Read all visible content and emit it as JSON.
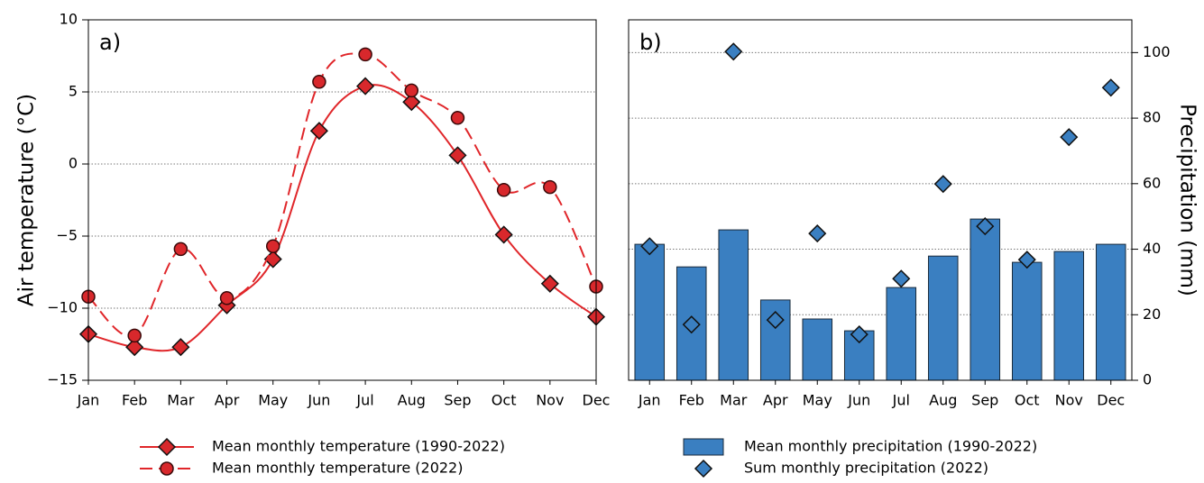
{
  "chart_data": [
    {
      "type": "line",
      "label": "a)",
      "y_label": "Air temperature (°C)",
      "categories": [
        "Jan",
        "Feb",
        "Mar",
        "Apr",
        "May",
        "Jun",
        "Jul",
        "Aug",
        "Sep",
        "Oct",
        "Nov",
        "Dec"
      ],
      "series": [
        {
          "name": "Mean monthly temperature (1990-2022)",
          "color": "#e0262a",
          "marker": "diamond",
          "linestyle": "solid",
          "values": [
            -11.8,
            -12.7,
            -12.7,
            -9.8,
            -6.6,
            2.3,
            5.4,
            4.3,
            0.6,
            -4.9,
            -8.3,
            -10.6
          ]
        },
        {
          "name": "Mean monthly temperature (2022)",
          "color": "#e0262a",
          "marker": "circle",
          "linestyle": "dashed",
          "values": [
            -9.2,
            -11.9,
            -5.9,
            -9.3,
            -5.7,
            5.7,
            7.6,
            5.1,
            3.2,
            -1.8,
            -1.6,
            -8.5
          ]
        }
      ],
      "ylim": [
        -15,
        10
      ],
      "yticks": [
        {
          "value": -15,
          "label": "−15"
        },
        {
          "value": -10,
          "label": "−10"
        },
        {
          "value": -5,
          "label": "−5"
        },
        0,
        5,
        10
      ],
      "grid": true
    },
    {
      "type": "bar",
      "label": "b)",
      "y_label": "Precipitation (mm)",
      "y_axis_side": "right",
      "categories": [
        "Jan",
        "Feb",
        "Mar",
        "Apr",
        "May",
        "Jun",
        "Jul",
        "Aug",
        "Sep",
        "Oct",
        "Nov",
        "Dec"
      ],
      "series": [
        {
          "name": "Mean monthly precipitation (1990-2022)",
          "color": "#3a7fc1",
          "type": "bar",
          "values": [
            41.5,
            34.6,
            45.9,
            24.5,
            18.7,
            15.1,
            28.3,
            37.9,
            49.2,
            36.0,
            39.3,
            41.5
          ]
        },
        {
          "name": "Sum monthly precipitation (2022)",
          "color": "#3a7fc1",
          "type": "scatter",
          "marker": "diamond",
          "values": [
            40.9,
            17.0,
            100.3,
            18.4,
            44.8,
            14.0,
            31.0,
            59.9,
            47.0,
            36.8,
            74.2,
            89.3
          ]
        }
      ],
      "ylim": [
        0,
        110
      ],
      "yticks": [
        0,
        20,
        40,
        60,
        80,
        100
      ],
      "grid": true
    }
  ]
}
